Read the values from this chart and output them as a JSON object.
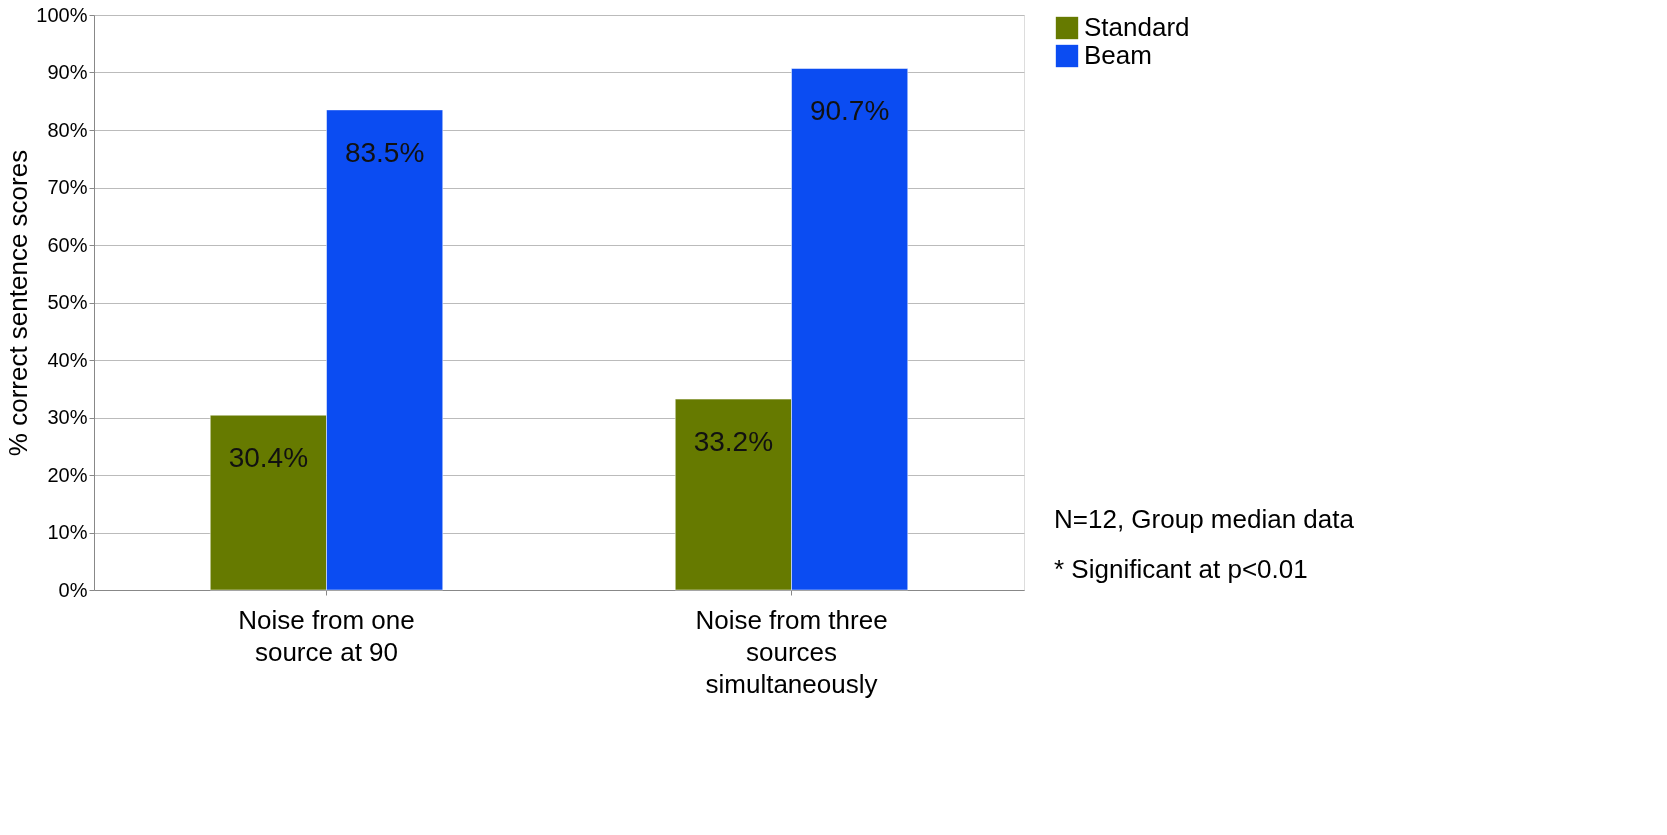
{
  "chart_data": {
    "type": "bar",
    "ylabel": "% correct sentence scores",
    "categories": [
      "Noise from one source at 90",
      "Noise from three sources simultaneously"
    ],
    "series": [
      {
        "name": "Standard",
        "color": "#667a00",
        "values": [
          30.4,
          33.2
        ]
      },
      {
        "name": "Beam",
        "color": "#0b4cf2",
        "values": [
          83.5,
          90.7
        ]
      }
    ],
    "value_labels": [
      [
        "30.4%",
        "33.2%"
      ],
      [
        "83.5%",
        "90.7%"
      ]
    ],
    "ylim": [
      0,
      100
    ],
    "yticks": [
      {
        "value": 0,
        "label": "0%"
      },
      {
        "value": 10,
        "label": "10%"
      },
      {
        "value": 20,
        "label": "20%"
      },
      {
        "value": 30,
        "label": "30%"
      },
      {
        "value": 40,
        "label": "40%"
      },
      {
        "value": 50,
        "label": "50%"
      },
      {
        "value": 60,
        "label": "60%"
      },
      {
        "value": 70,
        "label": "70%"
      },
      {
        "value": 80,
        "label": "80%"
      },
      {
        "value": 90,
        "label": "90%"
      },
      {
        "value": 100,
        "label": "100%"
      }
    ],
    "grid": "y",
    "legend": "right",
    "annotations": [
      "N=12, Group median data",
      "* Significant at p<0.01"
    ]
  }
}
